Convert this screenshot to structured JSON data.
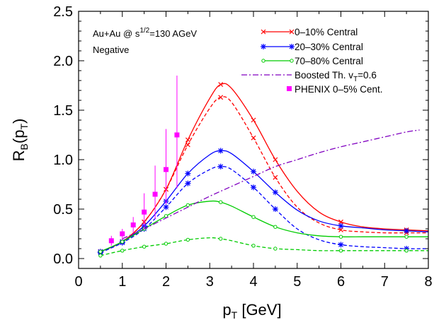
{
  "chart_data": {
    "type": "line",
    "xlabel_main": "p",
    "xlabel_sub": "T",
    "xlabel_rest": " [GeV]",
    "ylabel_main": "R",
    "ylabel_sub": "B",
    "ylabel_paren_open": "(p",
    "ylabel_sub2": "T",
    "ylabel_paren_close": ")",
    "xlim": [
      0,
      8
    ],
    "ylim": [
      -0.1,
      2.5
    ],
    "xticks": [
      "0",
      "1",
      "2",
      "3",
      "4",
      "5",
      "6",
      "7",
      "8"
    ],
    "yticks": [
      "0.0",
      "0.5",
      "1.0",
      "1.5",
      "2.0",
      "2.5"
    ],
    "annotation_line1_a": "Au+Au @ s",
    "annotation_line1_sup": "1/2",
    "annotation_line1_b": "=130 AGeV",
    "annotation_line2": "Negative",
    "legend_placement": "top-right",
    "legend": [
      {
        "label": "0–10% Central",
        "color": "#ff0000",
        "marker": "x",
        "style": "solid"
      },
      {
        "label": "20–30% Central",
        "color": "#0000ff",
        "marker": "asterisk",
        "style": "solid"
      },
      {
        "label": "70–80% Central",
        "color": "#00cc00",
        "marker": "circle",
        "style": "solid"
      },
      {
        "label_a": "Boosted Th. v",
        "label_sub": "T",
        "label_b": "=0.6",
        "color": "#8000c0",
        "marker": "none",
        "style": "dashdot"
      },
      {
        "label": "PHENIX 0–5% Cent.",
        "color": "#ff00ff",
        "marker": "square",
        "style": "none"
      }
    ],
    "series": [
      {
        "color": "#ff0000",
        "style": "solid",
        "marker": "x",
        "x": [
          0.5,
          1.0,
          1.5,
          2.0,
          2.5,
          3.0,
          3.25,
          3.5,
          4.0,
          4.5,
          5.0,
          5.5,
          6.0,
          6.5,
          7.0,
          7.5,
          8.0
        ],
        "y": [
          0.07,
          0.17,
          0.37,
          0.7,
          1.2,
          1.62,
          1.76,
          1.72,
          1.4,
          1.0,
          0.68,
          0.47,
          0.37,
          0.32,
          0.3,
          0.29,
          0.28
        ]
      },
      {
        "color": "#ff0000",
        "style": "dashed",
        "marker": "x",
        "x": [
          0.5,
          1.0,
          1.5,
          2.0,
          2.5,
          3.0,
          3.25,
          3.5,
          4.0,
          4.5,
          5.0,
          5.5,
          6.0,
          6.5,
          7.0,
          7.5,
          8.0
        ],
        "y": [
          0.07,
          0.17,
          0.37,
          0.7,
          1.15,
          1.52,
          1.63,
          1.58,
          1.22,
          0.82,
          0.52,
          0.36,
          0.29,
          0.27,
          0.26,
          0.26,
          0.26
        ]
      },
      {
        "color": "#0000ff",
        "style": "solid",
        "marker": "asterisk",
        "x": [
          0.5,
          1.0,
          1.5,
          2.0,
          2.5,
          3.0,
          3.25,
          3.5,
          4.0,
          4.5,
          5.0,
          5.5,
          6.0,
          6.5,
          7.0,
          7.5,
          8.0
        ],
        "y": [
          0.07,
          0.17,
          0.33,
          0.58,
          0.86,
          1.05,
          1.09,
          1.06,
          0.88,
          0.67,
          0.49,
          0.38,
          0.33,
          0.31,
          0.29,
          0.28,
          0.27
        ]
      },
      {
        "color": "#0000ff",
        "style": "dashed",
        "marker": "asterisk",
        "x": [
          0.5,
          1.0,
          1.5,
          2.0,
          2.5,
          3.0,
          3.25,
          3.5,
          4.0,
          4.5,
          5.0,
          5.5,
          6.0,
          6.5,
          7.0,
          7.5,
          8.0
        ],
        "y": [
          0.06,
          0.16,
          0.3,
          0.52,
          0.76,
          0.9,
          0.93,
          0.9,
          0.72,
          0.5,
          0.3,
          0.19,
          0.14,
          0.12,
          0.11,
          0.1,
          0.1
        ]
      },
      {
        "color": "#00cc00",
        "style": "solid",
        "marker": "circle",
        "x": [
          0.5,
          1.0,
          1.5,
          2.0,
          2.5,
          3.0,
          3.25,
          3.5,
          4.0,
          4.5,
          5.0,
          5.5,
          6.0,
          6.5,
          7.0,
          7.5,
          8.0
        ],
        "y": [
          0.07,
          0.17,
          0.3,
          0.43,
          0.54,
          0.58,
          0.57,
          0.53,
          0.42,
          0.32,
          0.26,
          0.23,
          0.22,
          0.22,
          0.22,
          0.22,
          0.22
        ]
      },
      {
        "color": "#00cc00",
        "style": "dashed",
        "marker": "circle",
        "x": [
          0.5,
          1.0,
          1.5,
          2.0,
          2.5,
          3.0,
          3.25,
          3.5,
          4.0,
          4.5,
          5.0,
          5.5,
          6.0,
          6.5,
          7.0,
          7.5,
          8.0
        ],
        "y": [
          0.03,
          0.08,
          0.12,
          0.15,
          0.19,
          0.21,
          0.2,
          0.18,
          0.13,
          0.1,
          0.09,
          0.08,
          0.08,
          0.08,
          0.08,
          0.08,
          0.08
        ]
      },
      {
        "color": "#8000c0",
        "style": "dashdot",
        "marker": "none",
        "x": [
          1.0,
          1.5,
          2.0,
          2.5,
          3.0,
          3.5,
          4.0,
          4.5,
          5.0,
          5.5,
          6.0,
          6.5,
          7.0,
          7.5,
          7.8
        ],
        "y": [
          0.2,
          0.3,
          0.41,
          0.52,
          0.63,
          0.73,
          0.83,
          0.93,
          1.0,
          1.07,
          1.13,
          1.18,
          1.23,
          1.28,
          1.3
        ]
      }
    ],
    "phenix": {
      "color": "#ff00ff",
      "x": [
        0.75,
        1.0,
        1.25,
        1.5,
        1.75,
        2.0,
        2.25
      ],
      "y": [
        0.18,
        0.25,
        0.34,
        0.47,
        0.65,
        0.9,
        1.25
      ],
      "err_up": [
        0.23,
        0.3,
        0.42,
        0.66,
        0.94,
        1.31,
        1.85
      ],
      "err_down": [
        0.13,
        0.19,
        0.26,
        0.3,
        0.4,
        0.55,
        0.71
      ]
    }
  }
}
